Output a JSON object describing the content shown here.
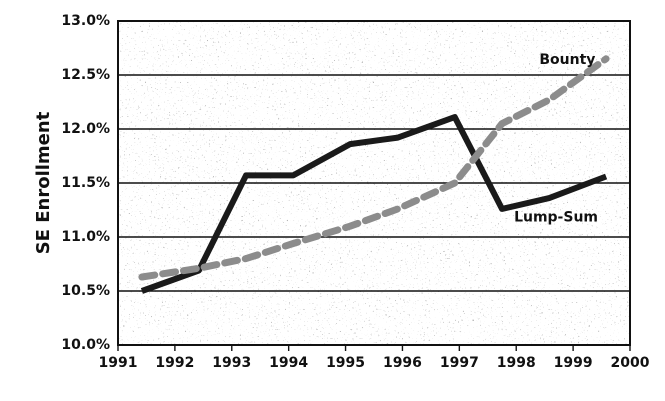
{
  "chart_data": {
    "type": "line",
    "title": "",
    "xlabel": "",
    "ylabel": "SE Enrollment",
    "xlim": [
      1991,
      2000
    ],
    "ylim": [
      10.0,
      13.0
    ],
    "x_ticks": [
      1991,
      1992,
      1993,
      1994,
      1995,
      1996,
      1997,
      1998,
      1999,
      2000
    ],
    "x_tick_labels": [
      "1991",
      "1992",
      "1993",
      "1994",
      "1995",
      "1996",
      "1997",
      "1998",
      "1999",
      "2000"
    ],
    "y_ticks": [
      10.0,
      10.5,
      11.0,
      11.5,
      12.0,
      12.5,
      13.0
    ],
    "y_tick_labels": [
      "10.0%",
      "10.5%",
      "11.0%",
      "11.5%",
      "12.0%",
      "12.5%",
      "13.0%"
    ],
    "grid": "horizontal",
    "legend": "none",
    "series": [
      {
        "name": "Lump-Sum",
        "style": "solid",
        "color": "#1a1a1a",
        "x": [
          1991.42,
          1992.42,
          1993.25,
          1994.08,
          1995.08,
          1995.92,
          1996.92,
          1997.75,
          1998.58,
          1999.58
        ],
        "y": [
          10.5,
          10.69,
          11.57,
          11.57,
          11.86,
          11.92,
          12.11,
          11.26,
          11.36,
          11.56
        ],
        "label": "Lump-Sum",
        "label_x": 1998.7,
        "label_y": 11.18
      },
      {
        "name": "Bounty",
        "style": "dashed",
        "color": "#8c8c8c",
        "x": [
          1991.42,
          1992.42,
          1993.25,
          1994.08,
          1995.08,
          1995.92,
          1996.92,
          1997.75,
          1998.58,
          1999.58
        ],
        "y": [
          10.63,
          10.71,
          10.8,
          10.94,
          11.1,
          11.26,
          11.5,
          12.05,
          12.27,
          12.65
        ],
        "label": "Bounty",
        "label_x": 1998.9,
        "label_y": 12.64
      }
    ]
  }
}
